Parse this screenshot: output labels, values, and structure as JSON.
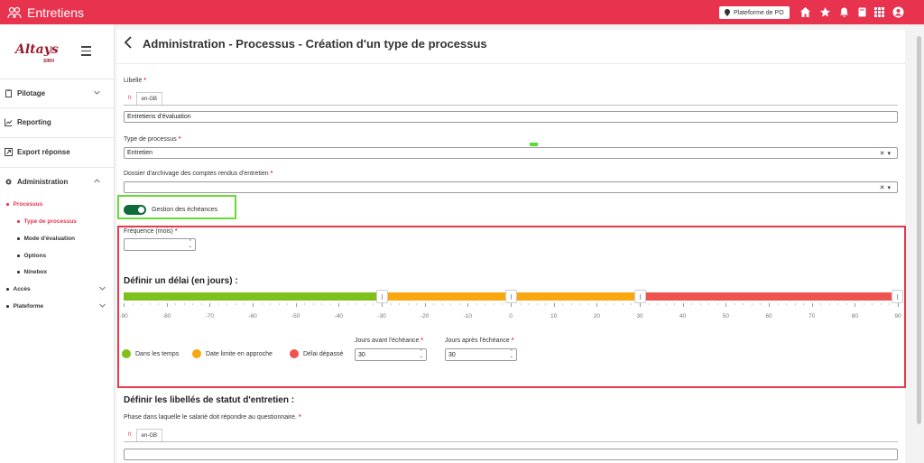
{
  "app": {
    "title": "Entretiens",
    "tenant": "Plateforme de PO"
  },
  "colors": {
    "brand": "#e8334f",
    "toggle": "#0e6b3a",
    "green": "#7ec11b",
    "orange": "#f9a70f",
    "red": "#ef5350"
  },
  "sidebar": {
    "logo_text": "Altays",
    "logo_sub": "SIRH",
    "items": [
      {
        "label": "Pilotage",
        "icon": "clipboard-icon"
      },
      {
        "label": "Reporting",
        "icon": "chart-icon"
      },
      {
        "label": "Export réponse",
        "icon": "export-icon"
      },
      {
        "label": "Administration",
        "icon": "gear-icon"
      }
    ],
    "sub": {
      "processus": "Processus",
      "type_processus": "Type de processus",
      "mode_evaluation": "Mode d'évaluation",
      "options": "Options",
      "ninebox": "Ninebox",
      "acces": "Accès",
      "plateforme": "Plateforme"
    }
  },
  "main": {
    "title": "Administration - Processus - Création d'un type de processus",
    "libelle": {
      "label": "Libellé",
      "tabs": [
        "fr",
        "en-GB"
      ],
      "value": "Entretiens d'évaluation"
    },
    "type_processus": {
      "label": "Type de processus",
      "value": "Entretien"
    },
    "dossier": {
      "label": "Dossier d'archivage des comptes rendus d'entretien",
      "value": ""
    },
    "gestion_toggle": {
      "label": "Gestion des échéances",
      "on": true
    },
    "frequence": {
      "label": "Fréquence (mois)",
      "value": ""
    },
    "delai": {
      "title": "Définir un délai (en jours) :",
      "ticks": [
        "-90",
        "-80",
        "-70",
        "-60",
        "-50",
        "-40",
        "-30",
        "-20",
        "-10",
        "0",
        "10",
        "20",
        "30",
        "40",
        "50",
        "60",
        "70",
        "80",
        "90"
      ],
      "range_min": -90,
      "range_max": 90,
      "thumbs": [
        -30,
        0,
        30,
        90
      ],
      "legend": [
        "Dans les temps",
        "Date limite en approche",
        "Délai dépassé"
      ],
      "jours_avant": {
        "label": "Jours avant l'échéance",
        "value": "30"
      },
      "jours_apres": {
        "label": "Jours après l'échéance",
        "value": "30"
      }
    },
    "statut": {
      "title": "Définir les libellés de statut d'entretien :",
      "phase_label": "Phase dans laquelle le salarié doit répondre au questionnaire.",
      "tabs": [
        "fr",
        "en-GB"
      ]
    },
    "required_mark": "*"
  }
}
